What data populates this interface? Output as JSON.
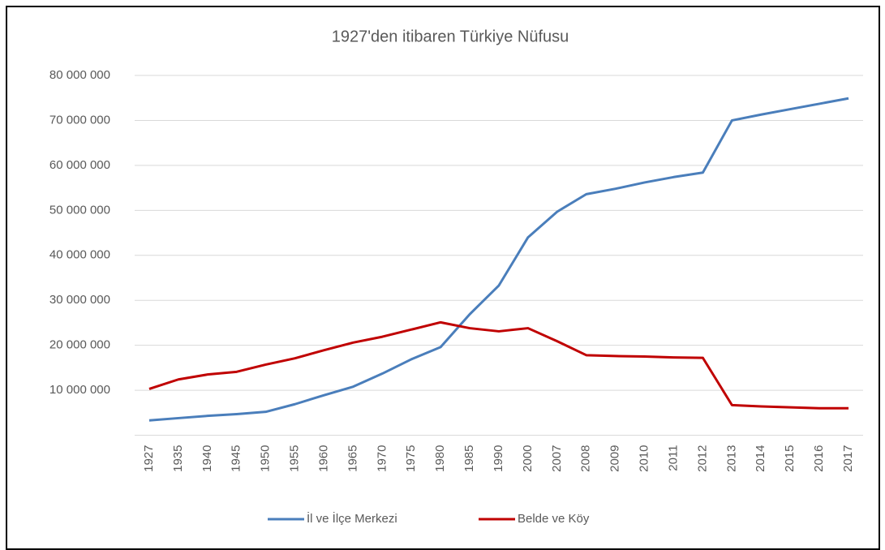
{
  "chart_data": {
    "type": "line",
    "title": "1927'den itibaren Türkiye Nüfusu",
    "categories": [
      "1927",
      "1935",
      "1940",
      "1945",
      "1950",
      "1955",
      "1960",
      "1965",
      "1970",
      "1975",
      "1980",
      "1985",
      "1990",
      "2000",
      "2007",
      "2008",
      "2009",
      "2010",
      "2011",
      "2012",
      "2013",
      "2014",
      "2015",
      "2016",
      "2017"
    ],
    "series": [
      {
        "name": "İl ve İlçe Merkezi",
        "color": "#4a7ebb",
        "values": [
          3300000,
          3800000,
          4300000,
          4700000,
          5200000,
          6900000,
          8900000,
          10800000,
          13700000,
          16900000,
          19600000,
          26900000,
          33300000,
          44000000,
          49700000,
          53600000,
          54800000,
          56200000,
          57400000,
          58400000,
          70000000,
          71300000,
          72500000,
          73700000,
          74900000
        ]
      },
      {
        "name": "Belde ve Köy",
        "color": "#c00000",
        "values": [
          10300000,
          12400000,
          13500000,
          14100000,
          15700000,
          17100000,
          18900000,
          20600000,
          21900000,
          23500000,
          25100000,
          23800000,
          23100000,
          23800000,
          20900000,
          17800000,
          17600000,
          17500000,
          17300000,
          17200000,
          6700000,
          6400000,
          6200000,
          6000000,
          6000000
        ]
      }
    ],
    "ylim": [
      0,
      80000000
    ],
    "yticks": [
      {
        "value": 10000000,
        "label": "10 000 000"
      },
      {
        "value": 20000000,
        "label": "20 000 000"
      },
      {
        "value": 30000000,
        "label": "30 000 000"
      },
      {
        "value": 40000000,
        "label": "40 000 000"
      },
      {
        "value": 50000000,
        "label": "50 000 000"
      },
      {
        "value": 60000000,
        "label": "60 000 000"
      },
      {
        "value": 70000000,
        "label": "70 000 000"
      },
      {
        "value": 80000000,
        "label": "80 000 000"
      }
    ],
    "grid": true,
    "legend": "bottom"
  }
}
